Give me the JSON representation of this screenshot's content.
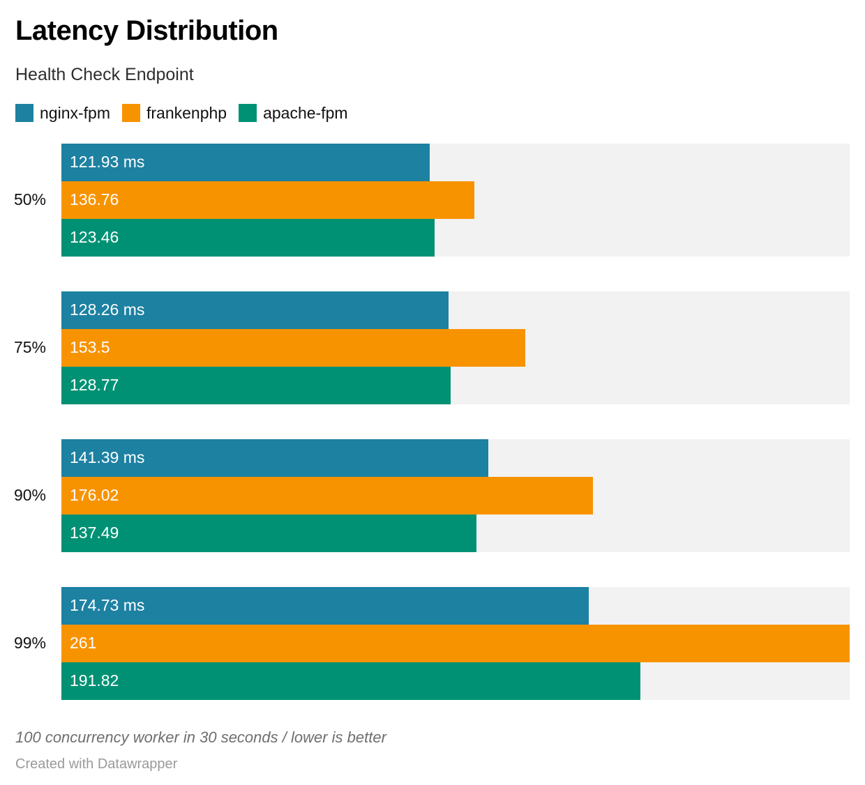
{
  "header": {
    "title": "Latency Distribution",
    "subtitle": "Health Check Endpoint"
  },
  "legend": {
    "items": [
      {
        "label": "nginx-fpm",
        "color": "#1d81a2"
      },
      {
        "label": "frankenphp",
        "color": "#f89300"
      },
      {
        "label": "apache-fpm",
        "color": "#009174"
      }
    ]
  },
  "chart_data": {
    "type": "bar",
    "orientation": "horizontal",
    "title": "Latency Distribution",
    "subtitle": "Health Check Endpoint",
    "categories": [
      "50%",
      "75%",
      "90%",
      "99%"
    ],
    "series": [
      {
        "name": "nginx-fpm",
        "color": "#1d81a2",
        "values": [
          121.93,
          128.26,
          141.39,
          174.73
        ],
        "labels": [
          "121.93 ms",
          "128.26 ms",
          "141.39 ms",
          "174.73 ms"
        ]
      },
      {
        "name": "frankenphp",
        "color": "#f89300",
        "values": [
          136.76,
          153.5,
          176.02,
          261
        ],
        "labels": [
          "136.76",
          "153.5",
          "176.02",
          "261"
        ]
      },
      {
        "name": "apache-fpm",
        "color": "#009174",
        "values": [
          123.46,
          128.77,
          137.49,
          191.82
        ],
        "labels": [
          "123.46",
          "128.77",
          "137.49",
          "191.82"
        ]
      }
    ],
    "xlabel": "",
    "ylabel": "",
    "xlim": [
      0,
      261
    ],
    "grid": false,
    "legend_position": "top",
    "track_color": "#f2f2f2",
    "value_label_color": "#ffffff",
    "unit": "ms"
  },
  "footer": {
    "note": "100 concurrency worker in 30 seconds / lower is better",
    "attribution": "Created with Datawrapper"
  }
}
